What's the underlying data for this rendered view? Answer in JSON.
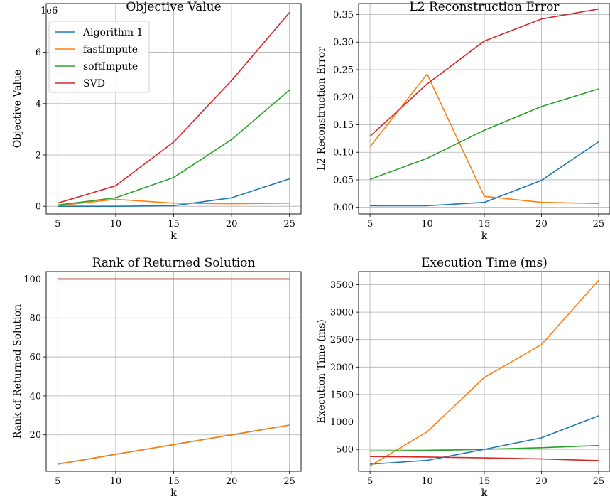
{
  "colors": {
    "Algorithm 1": "#1f77b4",
    "fastImpute": "#ff7f0e",
    "softImpute": "#2ca02c",
    "SVD": "#d62728"
  },
  "legend": {
    "placement": "upper-left of first subplot",
    "entries": [
      "Algorithm 1",
      "fastImpute",
      "softImpute",
      "SVD"
    ]
  },
  "chart_data": [
    {
      "type": "line",
      "title": "Objective Value",
      "xlabel": "k",
      "ylabel": "Objective Value",
      "scale_label": "1e6",
      "grid": true,
      "x": [
        5,
        10,
        15,
        20,
        25
      ],
      "xticks": [
        5,
        10,
        15,
        20,
        25
      ],
      "xlim": [
        4,
        26
      ],
      "yticks": [
        0,
        2,
        4,
        6
      ],
      "ylim": [
        -0.3,
        7.9
      ],
      "series": [
        {
          "name": "Algorithm 1",
          "values": [
            0.0,
            0.0,
            0.02,
            0.33,
            1.07
          ]
        },
        {
          "name": "fastImpute",
          "values": [
            0.02,
            0.27,
            0.12,
            0.1,
            0.12
          ]
        },
        {
          "name": "softImpute",
          "values": [
            0.05,
            0.33,
            1.12,
            2.6,
            4.53
          ]
        },
        {
          "name": "SVD",
          "values": [
            0.12,
            0.8,
            2.5,
            4.9,
            7.55
          ]
        }
      ]
    },
    {
      "type": "line",
      "title": "L2 Reconstruction Error",
      "xlabel": "k",
      "ylabel": "L2 Reconstruction Error",
      "grid": true,
      "x": [
        5,
        10,
        15,
        20,
        25
      ],
      "xticks": [
        5,
        10,
        15,
        20,
        25
      ],
      "xlim": [
        4,
        26
      ],
      "yticks": [
        "0.00",
        "0.05",
        "0.10",
        "0.15",
        "0.20",
        "0.25",
        "0.30",
        "0.35"
      ],
      "ylim": [
        -0.012,
        0.37
      ],
      "series": [
        {
          "name": "Algorithm 1",
          "values": [
            0.003,
            0.003,
            0.009,
            0.049,
            0.119
          ]
        },
        {
          "name": "fastImpute",
          "values": [
            0.11,
            0.242,
            0.02,
            0.009,
            0.007
          ]
        },
        {
          "name": "softImpute",
          "values": [
            0.051,
            0.089,
            0.14,
            0.183,
            0.215
          ]
        },
        {
          "name": "SVD",
          "values": [
            0.129,
            0.224,
            0.302,
            0.342,
            0.36
          ]
        }
      ]
    },
    {
      "type": "line",
      "title": "Rank of Returned Solution",
      "xlabel": "k",
      "ylabel": "Rank of Returned Solution",
      "grid": true,
      "x": [
        5,
        10,
        15,
        20,
        25
      ],
      "xticks": [
        5,
        10,
        15,
        20,
        25
      ],
      "xlim": [
        4,
        26
      ],
      "yticks": [
        20,
        40,
        60,
        80,
        100
      ],
      "ylim": [
        1.3,
        103.8
      ],
      "series": [
        {
          "name": "Algorithm 1",
          "values": [
            5,
            10,
            15,
            20,
            25
          ]
        },
        {
          "name": "fastImpute",
          "values": [
            5,
            10,
            15,
            20,
            25
          ]
        },
        {
          "name": "softImpute",
          "values": [
            100,
            100,
            100,
            100,
            100
          ]
        },
        {
          "name": "SVD",
          "values": [
            100,
            100,
            100,
            100,
            100
          ]
        }
      ]
    },
    {
      "type": "line",
      "title": "Execution Time (ms)",
      "xlabel": "k",
      "ylabel": "Execution Time (ms)",
      "grid": true,
      "x": [
        5,
        10,
        15,
        20,
        25
      ],
      "xticks": [
        5,
        10,
        15,
        20,
        25
      ],
      "xlim": [
        4,
        26
      ],
      "yticks": [
        500,
        1000,
        1500,
        2000,
        2500,
        3000,
        3500
      ],
      "ylim": [
        100,
        3740
      ],
      "series": [
        {
          "name": "Algorithm 1",
          "values": [
            230,
            300,
            500,
            710,
            1110
          ]
        },
        {
          "name": "fastImpute",
          "values": [
            200,
            820,
            1810,
            2410,
            3580
          ]
        },
        {
          "name": "softImpute",
          "values": [
            470,
            480,
            500,
            530,
            570
          ]
        },
        {
          "name": "SVD",
          "values": [
            370,
            360,
            345,
            325,
            295
          ]
        }
      ]
    }
  ]
}
